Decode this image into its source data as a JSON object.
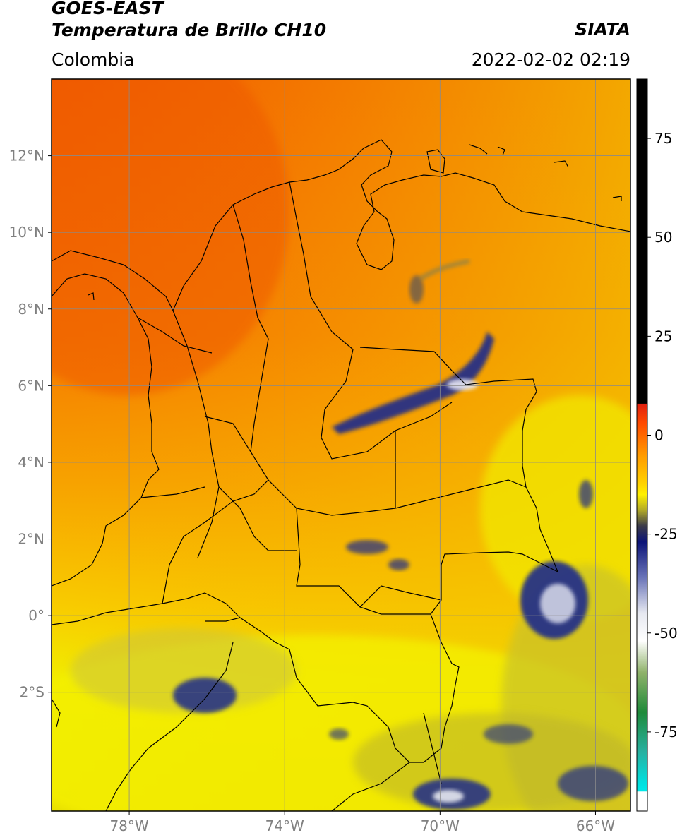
{
  "header": {
    "title_line1": "GOES-EAST",
    "title_line2": "Temperatura de Brillo CH10",
    "region": "Colombia",
    "agency": "SIATA",
    "timestamp": "2022-02-02 02:19"
  },
  "map": {
    "lon_range": [
      -80,
      -65.1
    ],
    "lat_range": [
      -5.1,
      14
    ],
    "lon_ticks": [
      {
        "value": -78,
        "label": "78°W"
      },
      {
        "value": -74,
        "label": "74°W"
      },
      {
        "value": -70,
        "label": "70°W"
      },
      {
        "value": -66,
        "label": "66°W"
      }
    ],
    "lat_ticks": [
      {
        "value": 12,
        "label": "12°N"
      },
      {
        "value": 10,
        "label": "10°N"
      },
      {
        "value": 8,
        "label": "8°N"
      },
      {
        "value": 6,
        "label": "6°N"
      },
      {
        "value": 4,
        "label": "4°N"
      },
      {
        "value": 2,
        "label": "2°N"
      },
      {
        "value": 0,
        "label": "0°"
      },
      {
        "value": -2,
        "label": "2°S"
      }
    ],
    "gridlines": true,
    "colors": {
      "warm_orange": "#f06a00",
      "mid_orange": "#f7a000",
      "yellow": "#f2ec00",
      "olive": "#b4ad1e",
      "navy": "#1c2a8c",
      "border": "#000000"
    }
  },
  "colorbar": {
    "range": [
      -95,
      90
    ],
    "ticks": [
      {
        "value": 75,
        "label": "75"
      },
      {
        "value": 50,
        "label": "50"
      },
      {
        "value": 25,
        "label": "25"
      },
      {
        "value": 0,
        "label": "0"
      },
      {
        "value": -25,
        "label": "-25"
      },
      {
        "value": -50,
        "label": "-50"
      },
      {
        "value": -75,
        "label": "-75"
      }
    ],
    "stops": [
      {
        "value": 90,
        "color": "#000000"
      },
      {
        "value": 8,
        "color": "#000000"
      },
      {
        "value": 7.9,
        "color": "#e02010"
      },
      {
        "value": 3,
        "color": "#ff4a00"
      },
      {
        "value": -5,
        "color": "#ff9a00"
      },
      {
        "value": -12,
        "color": "#ffd000"
      },
      {
        "value": -15,
        "color": "#fff000"
      },
      {
        "value": -19,
        "color": "#b0a828"
      },
      {
        "value": -23,
        "color": "#3a3a4a"
      },
      {
        "value": -27,
        "color": "#0c1478"
      },
      {
        "value": -36,
        "color": "#6a74b8"
      },
      {
        "value": -45,
        "color": "#e6e8f0"
      },
      {
        "value": -52,
        "color": "#ffffff"
      },
      {
        "value": -60,
        "color": "#8fb26a"
      },
      {
        "value": -70,
        "color": "#1f8a3a"
      },
      {
        "value": -80,
        "color": "#28b0a0"
      },
      {
        "value": -88,
        "color": "#00e0e0"
      },
      {
        "value": -90,
        "color": "#00e8e8"
      },
      {
        "value": -90.1,
        "color": "#ffffff"
      },
      {
        "value": -95,
        "color": "#ffffff"
      }
    ]
  }
}
